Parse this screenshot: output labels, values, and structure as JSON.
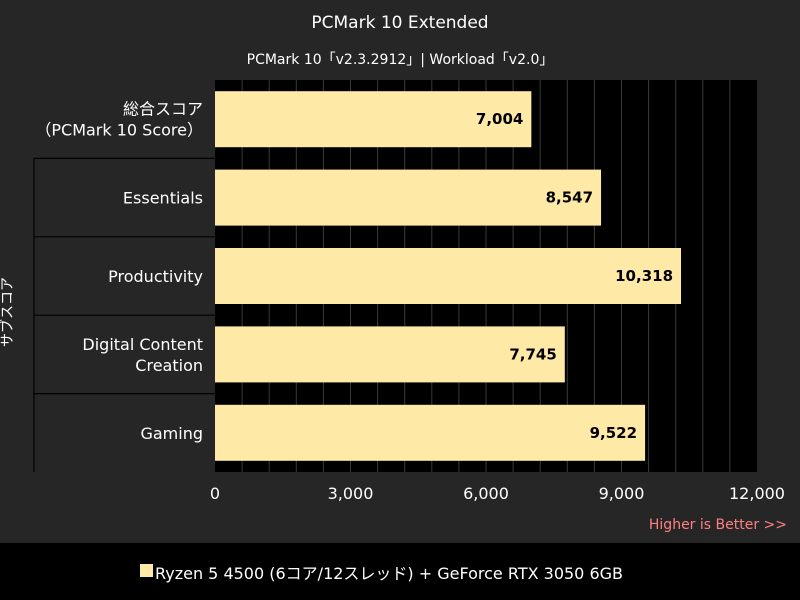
{
  "chart_data": {
    "type": "bar",
    "orientation": "horizontal",
    "title": "PCMark 10 Extended",
    "subtitle": "PCMark 10「v2.3.2912」| Workload「v2.0」",
    "categories": [
      [
        "総合スコア",
        "（PCMark 10 Score）"
      ],
      [
        "Essentials"
      ],
      [
        "Productivity"
      ],
      [
        "Digital Content",
        "Creation"
      ],
      [
        "Gaming"
      ]
    ],
    "values": [
      7004,
      8547,
      10318,
      7745,
      9522
    ],
    "value_labels": [
      "7,004",
      "8,547",
      "10,318",
      "7,745",
      "9,522"
    ],
    "xlim": [
      0,
      12000
    ],
    "x_ticks": [
      0,
      3000,
      6000,
      9000,
      12000
    ],
    "x_tick_labels": [
      "0",
      "3,000",
      "6,000",
      "9,000",
      "12,000"
    ],
    "group_label": "サブスコア",
    "note": "Higher is Better >>",
    "series": [
      {
        "name": "Ryzen 5 4500 (6コア/12スレッド) + GeForce RTX 3050 6GB",
        "values": [
          7004,
          8547,
          10318,
          7745,
          9522
        ]
      }
    ],
    "grid": true,
    "legend_position": "bottom",
    "colors": {
      "bar": "#FFE9A6",
      "plot_background": "#000000",
      "page_background": "#262626",
      "gridline": "#3a3a3a",
      "text": "#FFFFFF",
      "note": "#FF8080"
    }
  }
}
